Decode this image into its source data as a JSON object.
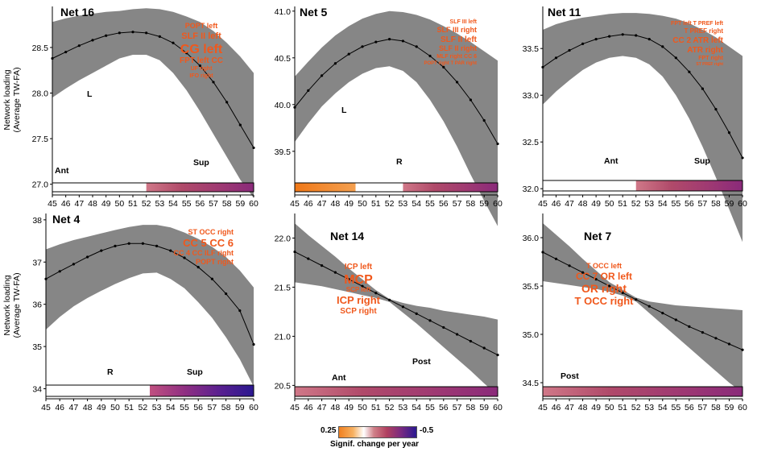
{
  "figure": {
    "ylabel_line1": "Network loading",
    "ylabel_line2": "(Average TW-FA)",
    "legend_title": "Signif. change per year",
    "legend_min": "0.25",
    "legend_max": "-0.5",
    "colors": {
      "increase": "#f08a2a",
      "none": "#ffffff",
      "decrease_mid": "#b04468",
      "decrease_strong": "#3a1f8a",
      "band": "#808080",
      "tract_label": "#f0581c"
    }
  },
  "chart_data": [
    {
      "type": "line",
      "title": "Net 16",
      "ylabel": "Network loading (Average TW-FA)",
      "x": [
        45,
        46,
        47,
        48,
        49,
        50,
        51,
        52,
        53,
        54,
        55,
        56,
        57,
        58,
        59,
        60
      ],
      "y": [
        28.38,
        28.45,
        28.52,
        28.58,
        28.63,
        28.66,
        28.67,
        28.66,
        28.62,
        28.55,
        28.44,
        28.3,
        28.12,
        27.9,
        27.65,
        27.4
      ],
      "band_upper": [
        28.78,
        28.82,
        28.85,
        28.87,
        28.89,
        28.9,
        28.92,
        28.93,
        28.92,
        28.89,
        28.84,
        28.78,
        28.68,
        28.55,
        28.4,
        28.22
      ],
      "band_lower": [
        27.95,
        28.05,
        28.14,
        28.22,
        28.3,
        28.38,
        28.42,
        28.42,
        28.36,
        28.22,
        28.03,
        27.8,
        27.55,
        27.3,
        27.05,
        26.85
      ],
      "ylim": [
        26.9,
        28.95
      ],
      "yticks": [
        27.0,
        27.5,
        28.0,
        28.5
      ],
      "ytick_labels": [
        "27.0",
        "27.5",
        "28.0",
        "28.5"
      ],
      "significance_bar": [
        {
          "from": 45,
          "to": 52,
          "kind": "none"
        },
        {
          "from": 52,
          "to": 60,
          "kind": "decrease"
        }
      ],
      "tract_labels": [
        {
          "text": "POPT left",
          "size": 9
        },
        {
          "text": "SLF II left",
          "size": 11
        },
        {
          "text": "CG left",
          "size": 16
        },
        {
          "text": "FPT left CC",
          "size": 10
        },
        {
          "text": "UF right",
          "size": 7
        },
        {
          "text": "IFO right",
          "size": 7
        }
      ],
      "view_labels": [
        "L",
        "Ant",
        "Sup"
      ]
    },
    {
      "type": "line",
      "title": "Net 5",
      "ylabel": "",
      "x": [
        45,
        46,
        47,
        48,
        49,
        50,
        51,
        52,
        53,
        54,
        55,
        56,
        57,
        58,
        59,
        60
      ],
      "y": [
        39.97,
        40.15,
        40.31,
        40.44,
        40.54,
        40.62,
        40.67,
        40.7,
        40.68,
        40.62,
        40.52,
        40.4,
        40.24,
        40.05,
        39.83,
        39.58
      ],
      "band_upper": [
        40.3,
        40.46,
        40.61,
        40.74,
        40.84,
        40.92,
        40.97,
        41.0,
        40.99,
        40.96,
        40.91,
        40.84,
        40.76,
        40.67,
        40.57,
        40.47
      ],
      "band_lower": [
        39.6,
        39.8,
        39.98,
        40.12,
        40.24,
        40.33,
        40.39,
        40.41,
        40.36,
        40.24,
        40.05,
        39.82,
        39.55,
        39.25,
        38.97,
        38.7
      ],
      "ylim": [
        39.05,
        41.05
      ],
      "yticks": [
        39.5,
        40.0,
        40.5,
        41.0
      ],
      "ytick_labels": [
        "39.5",
        "40.0",
        "40.5",
        "41.0"
      ],
      "significance_bar": [
        {
          "from": 45,
          "to": 49.5,
          "kind": "increase"
        },
        {
          "from": 49.5,
          "to": 53,
          "kind": "none"
        },
        {
          "from": 53,
          "to": 60,
          "kind": "decrease"
        }
      ],
      "tract_labels": [
        {
          "text": "SLF III left",
          "size": 7
        },
        {
          "text": "SLF III right",
          "size": 9
        },
        {
          "text": "SLF II left",
          "size": 10
        },
        {
          "text": "SLF II right",
          "size": 9
        },
        {
          "text": "MLF right CC 6",
          "size": 7
        },
        {
          "text": "POPT right T PAR right",
          "size": 6
        }
      ],
      "view_labels": [
        "L",
        "R"
      ]
    },
    {
      "type": "line",
      "title": "Net 11",
      "ylabel": "",
      "x": [
        45,
        46,
        47,
        48,
        49,
        50,
        51,
        52,
        53,
        54,
        55,
        56,
        57,
        58,
        59,
        60
      ],
      "y": [
        33.3,
        33.4,
        33.48,
        33.55,
        33.6,
        33.63,
        33.65,
        33.64,
        33.6,
        33.52,
        33.4,
        33.25,
        33.07,
        32.85,
        32.6,
        32.33
      ],
      "band_upper": [
        33.7,
        33.76,
        33.8,
        33.83,
        33.85,
        33.87,
        33.88,
        33.88,
        33.87,
        33.85,
        33.82,
        33.77,
        33.7,
        33.62,
        33.52,
        33.42
      ],
      "band_lower": [
        32.9,
        33.04,
        33.16,
        33.27,
        33.35,
        33.4,
        33.42,
        33.4,
        33.33,
        33.2,
        33.0,
        32.75,
        32.45,
        32.12,
        31.78,
        31.43
      ],
      "ylim": [
        31.95,
        33.95
      ],
      "yticks": [
        32.0,
        32.5,
        33.0,
        33.5
      ],
      "ytick_labels": [
        "32.0",
        "32.5",
        "33.0",
        "33.5"
      ],
      "significance_bar": [
        {
          "from": 45,
          "to": 52,
          "kind": "none"
        },
        {
          "from": 52,
          "to": 60,
          "kind": "decrease"
        }
      ],
      "tract_labels": [
        {
          "text": "FPT left T PREF left",
          "size": 7
        },
        {
          "text": "T PREF right",
          "size": 8
        },
        {
          "text": "CC 2 ATR left",
          "size": 10
        },
        {
          "text": "ATR right",
          "size": 10
        },
        {
          "text": "FPT right",
          "size": 7
        },
        {
          "text": "ST PREF right",
          "size": 5
        }
      ],
      "view_labels": [
        "Ant",
        "Sup"
      ]
    },
    {
      "type": "line",
      "title": "Net 4",
      "ylabel": "Network loading (Average TW-FA)",
      "x": [
        45,
        46,
        47,
        48,
        49,
        50,
        51,
        52,
        53,
        54,
        55,
        56,
        57,
        58,
        59,
        60
      ],
      "y": [
        36.6,
        36.78,
        36.95,
        37.12,
        37.27,
        37.38,
        37.44,
        37.44,
        37.38,
        37.27,
        37.1,
        36.88,
        36.6,
        36.25,
        35.85,
        35.05
      ],
      "band_upper": [
        37.3,
        37.42,
        37.52,
        37.6,
        37.68,
        37.76,
        37.83,
        37.88,
        37.88,
        37.82,
        37.7,
        37.55,
        37.36,
        37.12,
        36.8,
        36.4
      ],
      "band_lower": [
        35.4,
        35.7,
        35.95,
        36.15,
        36.32,
        36.48,
        36.62,
        36.73,
        36.75,
        36.6,
        36.38,
        36.05,
        35.68,
        35.22,
        34.7,
        34.05
      ],
      "ylim": [
        33.8,
        38.15
      ],
      "yticks": [
        34,
        35,
        36,
        37,
        38
      ],
      "ytick_labels": [
        "34",
        "35",
        "36",
        "37",
        "38"
      ],
      "significance_bar": [
        {
          "from": 45,
          "to": 52.5,
          "kind": "none"
        },
        {
          "from": 52.5,
          "to": 60,
          "kind": "strong_decrease"
        }
      ],
      "tract_labels": [
        {
          "text": "ST OCC right",
          "size": 9
        },
        {
          "text": "CC 5 CC 6",
          "size": 13
        },
        {
          "text": "CC 4 CC ILF right",
          "size": 9
        },
        {
          "text": "POPT right",
          "size": 9
        }
      ],
      "view_labels": [
        "R",
        "Sup"
      ]
    },
    {
      "type": "line",
      "title": "Net 14",
      "ylabel": "",
      "x": [
        45,
        46,
        47,
        48,
        49,
        50,
        51,
        52,
        53,
        54,
        55,
        56,
        57,
        58,
        59,
        60
      ],
      "y": [
        21.86,
        21.79,
        21.72,
        21.65,
        21.58,
        21.51,
        21.44,
        21.37,
        21.3,
        21.23,
        21.16,
        21.09,
        21.02,
        20.95,
        20.88,
        20.81
      ],
      "band_upper": [
        22.15,
        22.03,
        21.92,
        21.81,
        21.69,
        21.58,
        21.47,
        21.38,
        21.34,
        21.31,
        21.29,
        21.26,
        21.24,
        21.22,
        21.2,
        21.17
      ],
      "band_lower": [
        21.55,
        21.53,
        21.51,
        21.48,
        21.45,
        21.42,
        21.39,
        21.35,
        21.24,
        21.13,
        21.01,
        20.89,
        20.77,
        20.65,
        20.52,
        20.4
      ],
      "ylim": [
        20.38,
        22.25
      ],
      "yticks": [
        20.5,
        21.0,
        21.5,
        22.0
      ],
      "ytick_labels": [
        "20.5",
        "21.0",
        "21.5",
        "22.0"
      ],
      "significance_bar": [
        {
          "from": 45,
          "to": 60,
          "kind": "decrease"
        }
      ],
      "tract_labels": [
        {
          "text": "ICP left",
          "size": 10
        },
        {
          "text": "MCP",
          "size": 16
        },
        {
          "text": "SCP left",
          "size": 8
        },
        {
          "text": "ICP right",
          "size": 13
        },
        {
          "text": "SCP right",
          "size": 10
        }
      ],
      "view_labels": [
        "Ant",
        "Post"
      ]
    },
    {
      "type": "line",
      "title": "Net 7",
      "ylabel": "",
      "x": [
        45,
        46,
        47,
        48,
        49,
        50,
        51,
        52,
        53,
        54,
        55,
        56,
        57,
        58,
        59,
        60
      ],
      "y": [
        35.85,
        35.78,
        35.71,
        35.64,
        35.57,
        35.5,
        35.43,
        35.36,
        35.29,
        35.22,
        35.15,
        35.08,
        35.02,
        34.96,
        34.9,
        34.84
      ],
      "band_upper": [
        36.15,
        36.03,
        35.91,
        35.78,
        35.66,
        35.54,
        35.46,
        35.38,
        35.34,
        35.32,
        35.3,
        35.29,
        35.28,
        35.27,
        35.26,
        35.25
      ],
      "band_lower": [
        35.55,
        35.53,
        35.51,
        35.49,
        35.47,
        35.44,
        35.4,
        35.34,
        35.22,
        35.1,
        34.98,
        34.86,
        34.74,
        34.62,
        34.5,
        34.4
      ],
      "ylim": [
        34.35,
        36.25
      ],
      "yticks": [
        34.5,
        35.0,
        35.5,
        36.0
      ],
      "ytick_labels": [
        "34.5",
        "35.0",
        "35.5",
        "36.0"
      ],
      "significance_bar": [
        {
          "from": 45,
          "to": 60,
          "kind": "decrease"
        }
      ],
      "tract_labels": [
        {
          "text": "T OCC left",
          "size": 9
        },
        {
          "text": "CC 7 OR left",
          "size": 12
        },
        {
          "text": "OR right",
          "size": 14
        },
        {
          "text": "T OCC right",
          "size": 13
        }
      ],
      "view_labels": [
        "Post"
      ]
    }
  ]
}
